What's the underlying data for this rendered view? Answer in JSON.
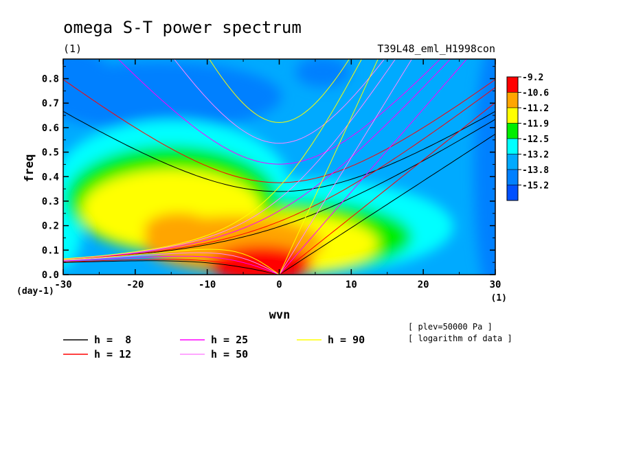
{
  "chart_data": {
    "type": "heatmap",
    "title": "omega S-T power spectrum",
    "unit_label": "(1)",
    "run_label": "T39L48_eml_H1998con",
    "xlabel": "wvn",
    "ylabel": "freq",
    "x_unit": "(1)",
    "y_unit": "(day-1)",
    "xlim": [
      -30,
      30
    ],
    "ylim": [
      0,
      0.88
    ],
    "xticks": [
      "-30",
      "-20",
      "-10",
      "0",
      "10",
      "20",
      "30"
    ],
    "yticks": [
      "0.0",
      "0.1",
      "0.2",
      "0.3",
      "0.4",
      "0.5",
      "0.6",
      "0.7",
      "0.8"
    ],
    "colorbar": {
      "labels": [
        "-9.2",
        "-10.6",
        "-11.2",
        "-11.9",
        "-12.5",
        "-13.2",
        "-13.8",
        "-15.2"
      ],
      "colors": [
        "#ff0000",
        "#ffa500",
        "#ffff00",
        "#00ee00",
        "#00ffff",
        "#00aaff",
        "#0080ff",
        "#0050ff"
      ]
    },
    "notes": [
      "[ plev=50000 Pa ]",
      "[ logarithm of data ]"
    ],
    "series": [
      {
        "name": "h =  8",
        "h": 8,
        "color": "#000000"
      },
      {
        "name": "h = 12",
        "h": 12,
        "color": "#ff0000"
      },
      {
        "name": "h = 25",
        "h": 25,
        "color": "#ff00ff"
      },
      {
        "name": "h = 50",
        "h": 50,
        "color": "#ff88ff"
      },
      {
        "name": "h = 90",
        "h": 90,
        "color": "#ffff00"
      }
    ]
  }
}
